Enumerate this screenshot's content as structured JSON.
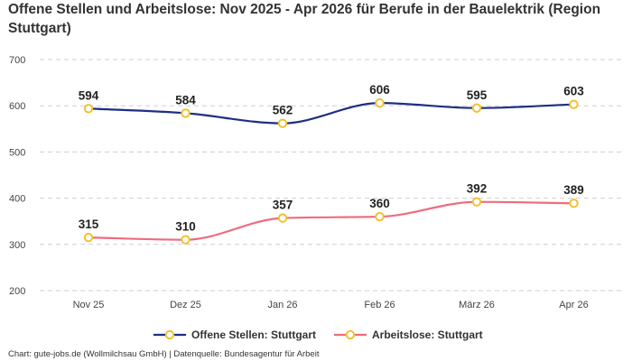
{
  "chart_data": {
    "type": "line",
    "title": "Offene Stellen und Arbeitslose: Nov 2025 - Apr 2026 für Berufe in der Bauelektrik (Region Stuttgart)",
    "categories": [
      "Nov 25",
      "Dez 25",
      "Jan 26",
      "Feb 26",
      "März 26",
      "Apr 26"
    ],
    "series": [
      {
        "name": "Offene Stellen: Stuttgart",
        "color": "#1f2d86",
        "values": [
          594,
          584,
          562,
          606,
          595,
          603
        ]
      },
      {
        "name": "Arbeitslose: Stuttgart",
        "color": "#ef6b7e",
        "values": [
          315,
          310,
          357,
          360,
          392,
          389
        ]
      }
    ],
    "marker_color": "#f2c12e",
    "ylim": [
      200,
      700
    ],
    "yticks": [
      200,
      300,
      400,
      500,
      600,
      700
    ],
    "grid": true,
    "legend_position": "bottom-center",
    "xlabel": "",
    "ylabel": ""
  },
  "footer": "Chart: gute-jobs.de (Wollmilchsau GmbH) | Datenquelle: Bundesagentur für Arbeit"
}
